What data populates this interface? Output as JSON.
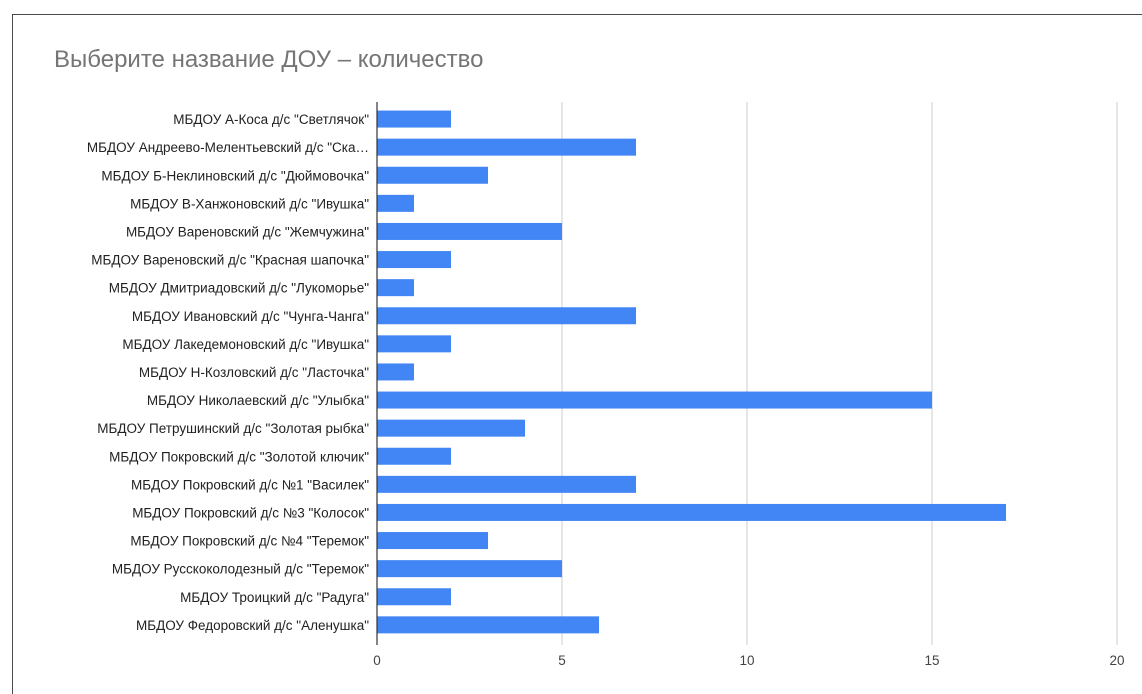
{
  "chart_data": {
    "type": "bar",
    "orientation": "horizontal",
    "title": "Выберите название ДОУ – количество",
    "xlabel": "",
    "ylabel": "",
    "categories": [
      "МБДОУ А-Коса д/с \"Светлячок\"",
      "МБДОУ Андреево-Мелентьевский д/с \"Ска…",
      "МБДОУ Б-Неклиновский д/с \"Дюймовочка\"",
      "МБДОУ В-Ханжоновский д/с \"Ивушка\"",
      "МБДОУ Вареновский д/с \"Жемчужина\"",
      "МБДОУ Вареновский д/с \"Красная шапочка\"",
      "МБДОУ Дмитриадовский д/с \"Лукоморье\"",
      "МБДОУ Ивановский д/с \"Чунга-Чанга\"",
      "МБДОУ Лакедемоновский д/с \"Ивушка\"",
      "МБДОУ Н-Козловский д/с \"Ласточка\"",
      "МБДОУ Николаевский д/с \"Улыбка\"",
      "МБДОУ Петрушинский д/с \"Золотая рыбка\"",
      "МБДОУ Покровский д/с \"Золотой ключик\"",
      "МБДОУ Покровский д/с №1 \"Василек\"",
      "МБДОУ Покровский д/с №3 \"Колосок\"",
      "МБДОУ Покровский д/с №4 \"Теремок\"",
      "МБДОУ Русскоколодезный д/с \"Теремок\"",
      "МБДОУ Троицкий д/с \"Радуга\"",
      "МБДОУ Федоровский д/с \"Аленушка\""
    ],
    "values": [
      2,
      7,
      3,
      1,
      5,
      2,
      1,
      7,
      2,
      1,
      15,
      4,
      2,
      7,
      17,
      3,
      5,
      2,
      6
    ],
    "xlim": [
      0,
      20
    ],
    "xticks": [
      0,
      5,
      10,
      15,
      20
    ],
    "xtick_labels": [
      "0",
      "5",
      "10",
      "15",
      "20"
    ],
    "grid": true,
    "bar_color": "#4285f4",
    "gridline_color": "#cccccc"
  }
}
